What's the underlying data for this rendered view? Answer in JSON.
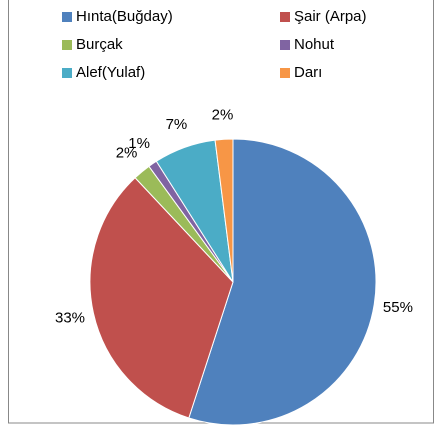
{
  "chart_data": {
    "type": "pie",
    "categories": [
      "Hınta(Buğday)",
      "Şair (Arpa)",
      "Burçak",
      "Nohut",
      "Alef(Yulaf)",
      "Darı"
    ],
    "values": [
      55,
      33,
      2,
      1,
      7,
      2
    ],
    "value_labels": [
      "55%",
      "33%",
      "2%",
      "1%",
      "7%",
      "2%"
    ],
    "colors": [
      "#4f81bd",
      "#c0504d",
      "#9bbb59",
      "#8064a2",
      "#4bacc6",
      "#f79646"
    ],
    "legend": "top"
  }
}
